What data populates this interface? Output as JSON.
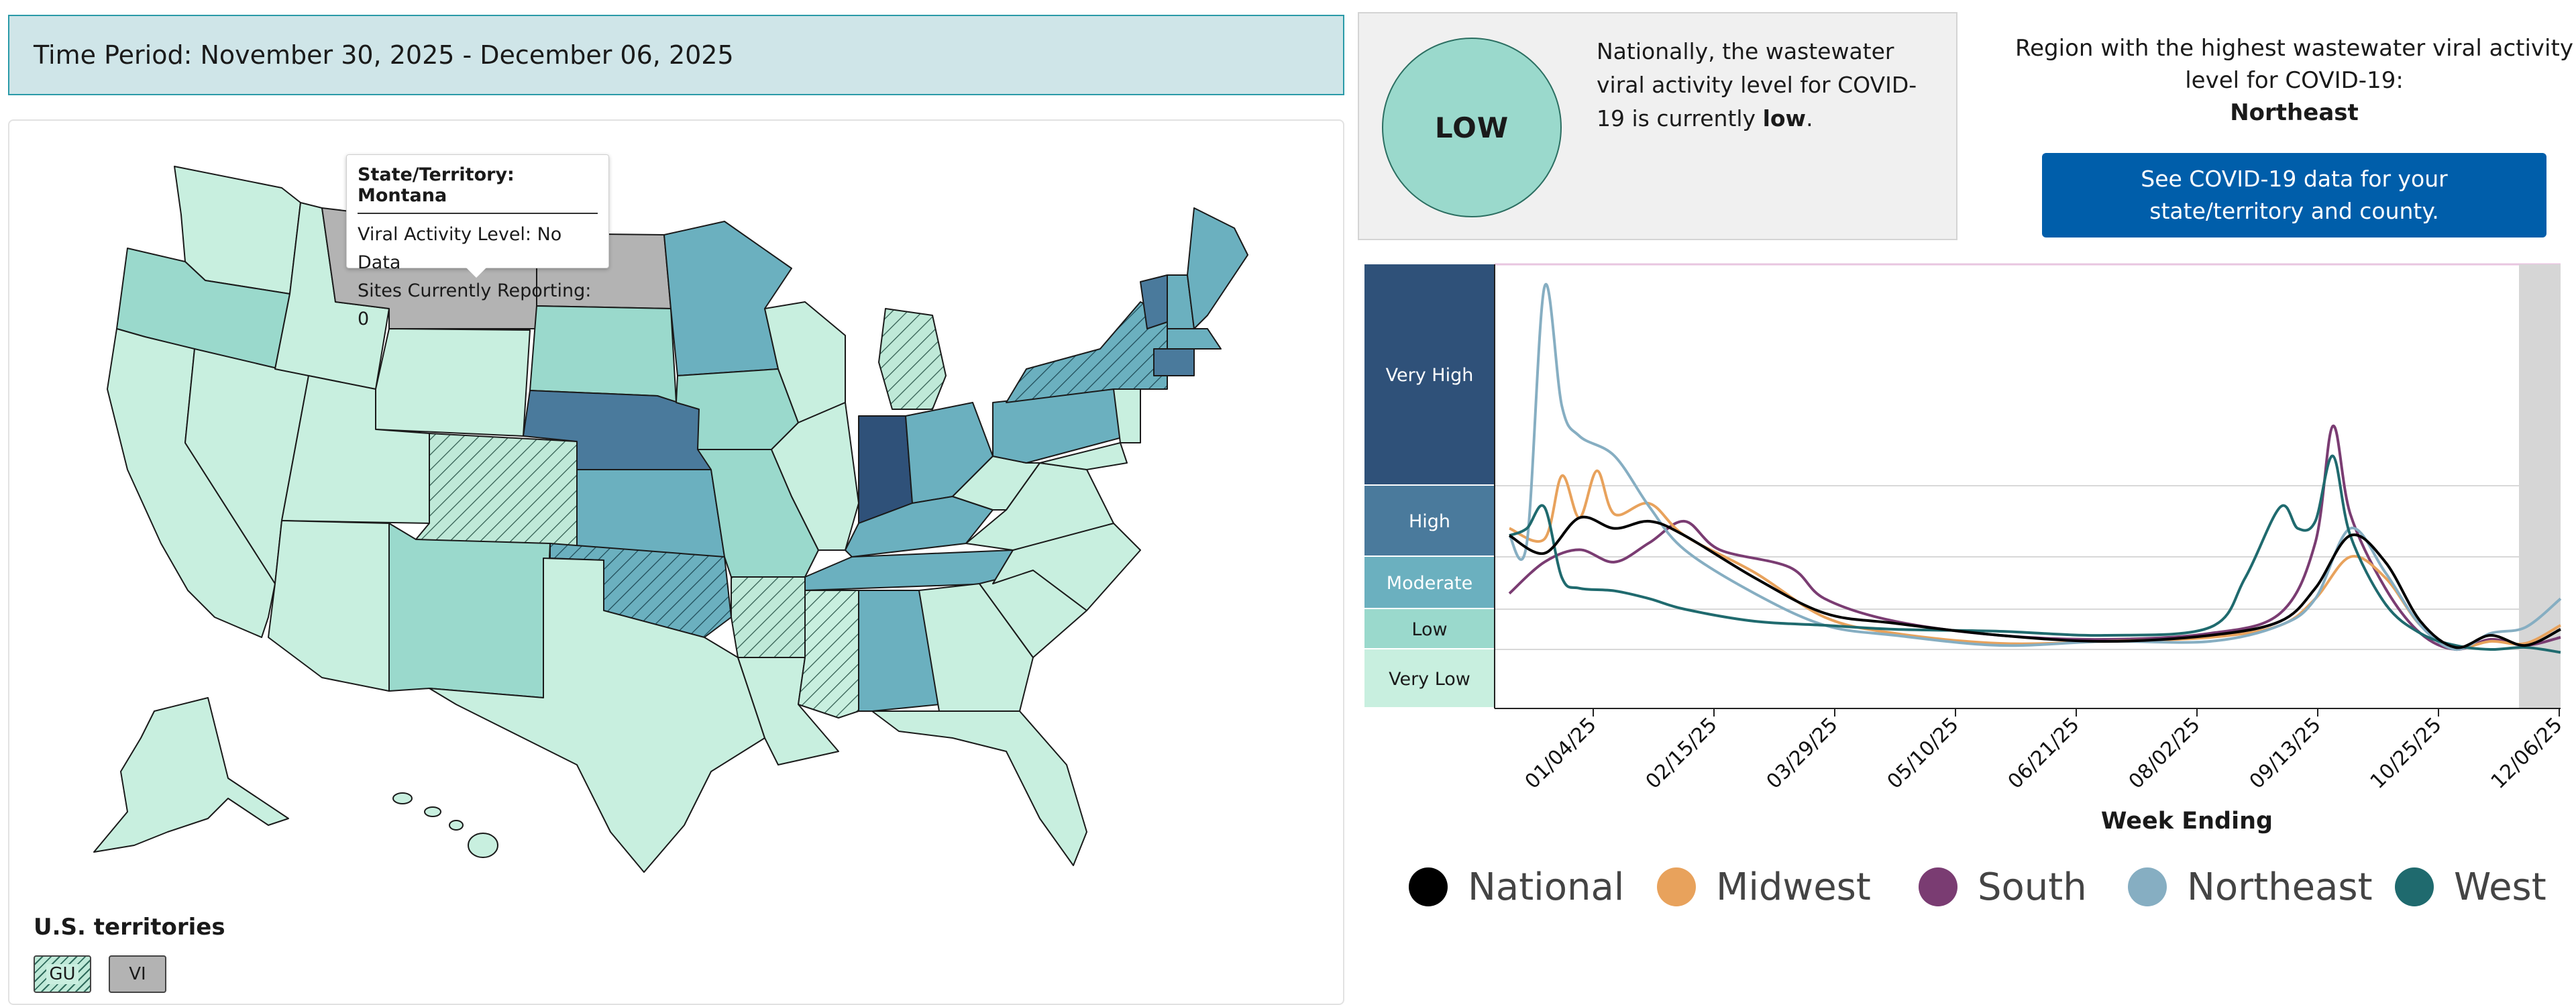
{
  "time_period": "Time Period: November 30, 2025 - December 06, 2025",
  "tooltip": {
    "title": "State/Territory: Montana",
    "line1": "Viral Activity Level: No Data",
    "line2": "Sites Currently Reporting: 0"
  },
  "territories": {
    "title": "U.S. territories",
    "items": [
      {
        "label": "GU",
        "level": "Low"
      },
      {
        "label": "VI",
        "level": "No Data"
      }
    ]
  },
  "national": {
    "badge": "LOW",
    "text_prefix": "Nationally, the wastewater viral activity level for COVID-19 is currently ",
    "text_level": "low",
    "text_suffix": "."
  },
  "region": {
    "text": "Region with the highest wastewater viral activity level for COVID-19:",
    "name": "Northeast"
  },
  "see_data_button": "See COVID-19 data for your state/territory and county.",
  "colors": {
    "very_high": "#2f5179",
    "high": "#4a7a9c",
    "moderate": "#6bb0bf",
    "low": "#9ad9cc",
    "very_low": "#c8efdf",
    "no_data": "#b3b3b3",
    "button": "#005eaa"
  },
  "levels": [
    "Very High",
    "High",
    "Moderate",
    "Low",
    "Very Low"
  ],
  "chart_data": {
    "type": "line",
    "xlabel": "Week Ending",
    "ylabel": "",
    "x_tick_labels": [
      "01/04/25",
      "02/15/25",
      "03/29/25",
      "05/10/25",
      "06/21/25",
      "08/02/25",
      "09/13/25",
      "10/25/25",
      "12/06/25"
    ],
    "y_bands": [
      "Very Low",
      "Low",
      "Moderate",
      "High",
      "Very High"
    ],
    "legend_position": "bottom",
    "series": [
      {
        "name": "National",
        "color": "#000000",
        "values": [
          [
            0,
            3.3
          ],
          [
            2,
            3.05
          ],
          [
            4,
            3.55
          ],
          [
            6,
            3.4
          ],
          [
            8,
            3.5
          ],
          [
            10,
            3.3
          ],
          [
            14,
            2.6
          ],
          [
            18,
            1.9
          ],
          [
            22,
            1.65
          ],
          [
            28,
            1.35
          ],
          [
            34,
            1.2
          ],
          [
            40,
            1.35
          ],
          [
            44,
            1.7
          ],
          [
            46,
            2.4
          ],
          [
            48,
            3.3
          ],
          [
            50,
            2.9
          ],
          [
            52,
            1.7
          ],
          [
            54,
            1.05
          ],
          [
            56,
            1.35
          ],
          [
            58,
            1.1
          ],
          [
            60,
            1.5
          ]
        ]
      },
      {
        "name": "Midwest",
        "color": "#e8a25c",
        "values": [
          [
            0,
            3.4
          ],
          [
            2,
            3.25
          ],
          [
            3,
            4.1
          ],
          [
            4,
            3.55
          ],
          [
            5,
            4.15
          ],
          [
            6,
            3.6
          ],
          [
            8,
            3.75
          ],
          [
            10,
            3.3
          ],
          [
            14,
            2.7
          ],
          [
            18,
            1.8
          ],
          [
            22,
            1.4
          ],
          [
            28,
            1.15
          ],
          [
            34,
            1.2
          ],
          [
            40,
            1.3
          ],
          [
            44,
            1.6
          ],
          [
            46,
            2.2
          ],
          [
            48,
            3.0
          ],
          [
            50,
            2.6
          ],
          [
            52,
            1.6
          ],
          [
            54,
            1.05
          ],
          [
            56,
            1.2
          ],
          [
            58,
            1.15
          ],
          [
            60,
            1.6
          ]
        ]
      },
      {
        "name": "South",
        "color": "#7a3c72",
        "values": [
          [
            0,
            2.3
          ],
          [
            2,
            2.9
          ],
          [
            4,
            3.1
          ],
          [
            6,
            2.9
          ],
          [
            8,
            3.2
          ],
          [
            10,
            3.5
          ],
          [
            12,
            3.1
          ],
          [
            16,
            2.8
          ],
          [
            18,
            2.2
          ],
          [
            22,
            1.7
          ],
          [
            28,
            1.35
          ],
          [
            34,
            1.25
          ],
          [
            40,
            1.4
          ],
          [
            44,
            1.9
          ],
          [
            46,
            3.2
          ],
          [
            47,
            4.6
          ],
          [
            48,
            3.6
          ],
          [
            50,
            2.4
          ],
          [
            52,
            1.4
          ],
          [
            54,
            1.0
          ],
          [
            56,
            1.25
          ],
          [
            58,
            1.1
          ],
          [
            60,
            1.3
          ]
        ]
      },
      {
        "name": "Northeast",
        "color": "#86aec2",
        "values": [
          [
            0,
            3.3
          ],
          [
            1,
            3.2
          ],
          [
            2,
            6.0
          ],
          [
            3,
            4.8
          ],
          [
            4,
            4.5
          ],
          [
            6,
            4.3
          ],
          [
            8,
            3.7
          ],
          [
            10,
            3.1
          ],
          [
            14,
            2.3
          ],
          [
            18,
            1.6
          ],
          [
            22,
            1.35
          ],
          [
            28,
            1.1
          ],
          [
            34,
            1.2
          ],
          [
            40,
            1.2
          ],
          [
            44,
            1.6
          ],
          [
            46,
            2.2
          ],
          [
            48,
            3.4
          ],
          [
            50,
            2.7
          ],
          [
            52,
            1.6
          ],
          [
            54,
            1.0
          ],
          [
            56,
            1.4
          ],
          [
            58,
            1.55
          ],
          [
            60,
            2.2
          ]
        ]
      },
      {
        "name": "West",
        "color": "#1f6a6e",
        "values": [
          [
            0,
            3.3
          ],
          [
            1,
            3.4
          ],
          [
            2,
            3.7
          ],
          [
            3,
            2.6
          ],
          [
            4,
            2.4
          ],
          [
            6,
            2.35
          ],
          [
            8,
            2.2
          ],
          [
            10,
            2.0
          ],
          [
            14,
            1.7
          ],
          [
            18,
            1.6
          ],
          [
            22,
            1.5
          ],
          [
            28,
            1.45
          ],
          [
            34,
            1.35
          ],
          [
            40,
            1.55
          ],
          [
            42,
            2.6
          ],
          [
            44,
            3.7
          ],
          [
            45,
            3.4
          ],
          [
            46,
            3.5
          ],
          [
            47,
            4.3
          ],
          [
            48,
            3.3
          ],
          [
            50,
            2.1
          ],
          [
            52,
            1.4
          ],
          [
            54,
            1.1
          ],
          [
            56,
            1.0
          ],
          [
            58,
            1.05
          ],
          [
            60,
            0.95
          ]
        ]
      }
    ]
  }
}
